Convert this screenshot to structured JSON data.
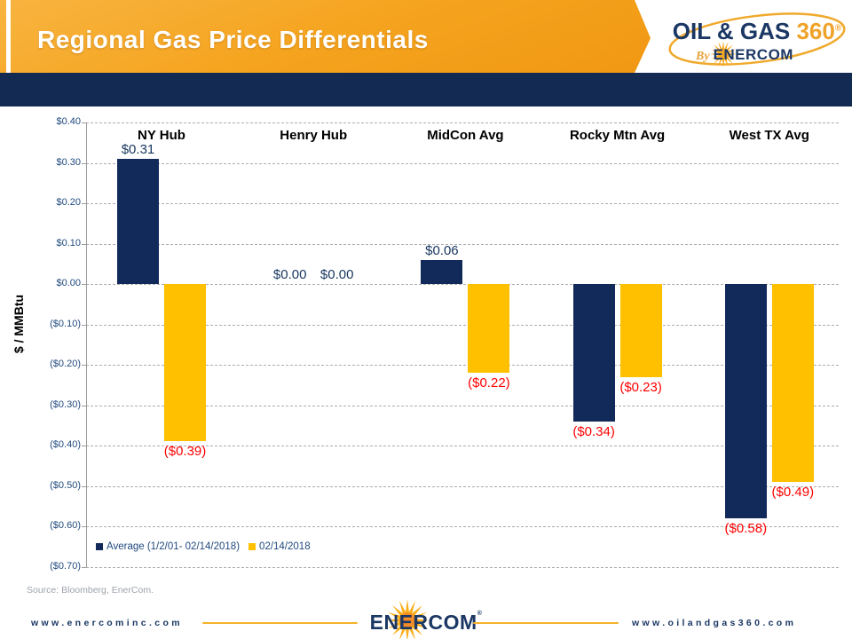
{
  "header": {
    "title": "Regional Gas Price Differentials",
    "logo": {
      "line1_navy": "OIL & GAS",
      "line1_gold": "360",
      "reg": "®",
      "by": "By",
      "brand": "ENERCOM"
    }
  },
  "chart_data": {
    "type": "bar",
    "categories": [
      "NY Hub",
      "Henry Hub",
      "MidCon Avg",
      "Rocky Mtn Avg",
      "West TX Avg"
    ],
    "series": [
      {
        "name": "Average (1/2/01- 02/14/2018)",
        "color": "#122A5A",
        "values": [
          0.31,
          0.0,
          0.06,
          -0.34,
          -0.58
        ],
        "labels": [
          "$0.31",
          "$0.00",
          "$0.06",
          "($0.34)",
          "($0.58)"
        ]
      },
      {
        "name": "02/14/2018",
        "color": "#FFC000",
        "values": [
          -0.39,
          0.0,
          -0.22,
          -0.23,
          -0.49
        ],
        "labels": [
          "($0.39)",
          "$0.00",
          "($0.22)",
          "($0.23)",
          "($0.49)"
        ]
      }
    ],
    "ylabel": "$ / MMBtu",
    "ylim": [
      -0.7,
      0.4
    ],
    "ytick_values": [
      0.4,
      0.3,
      0.2,
      0.1,
      0.0,
      -0.1,
      -0.2,
      -0.3,
      -0.4,
      -0.5,
      -0.6,
      -0.7
    ],
    "ytick_labels": [
      "$0.40",
      "$0.30",
      "$0.20",
      "$0.10",
      "$0.00",
      "($0.10)",
      "($0.20)",
      "($0.30)",
      "($0.40)",
      "($0.50)",
      "($0.60)",
      "($0.70)"
    ],
    "grid": "dashed horizontal",
    "legend_position": "inside bottom-left",
    "positive_label_color": "#17365D",
    "negative_label_color": "#FF0000"
  },
  "source": "Source: Bloomberg, EnerCom.",
  "footer": {
    "left_url": "www.enercominc.com",
    "brand": "ENERCOM",
    "brand_reg": "®",
    "right_url": "www.oilandgas360.com"
  },
  "colors": {
    "header_orange_from": "#F8B440",
    "header_orange_to": "#EF920D",
    "band_navy": "#132B52",
    "navy_series": "#122A5A",
    "gold_series": "#FFC000",
    "axis_text": "#1F497D",
    "gold_accent": "#F3B229",
    "logo_navy": "#1B3764",
    "logo_gold": "#F0A32A"
  }
}
